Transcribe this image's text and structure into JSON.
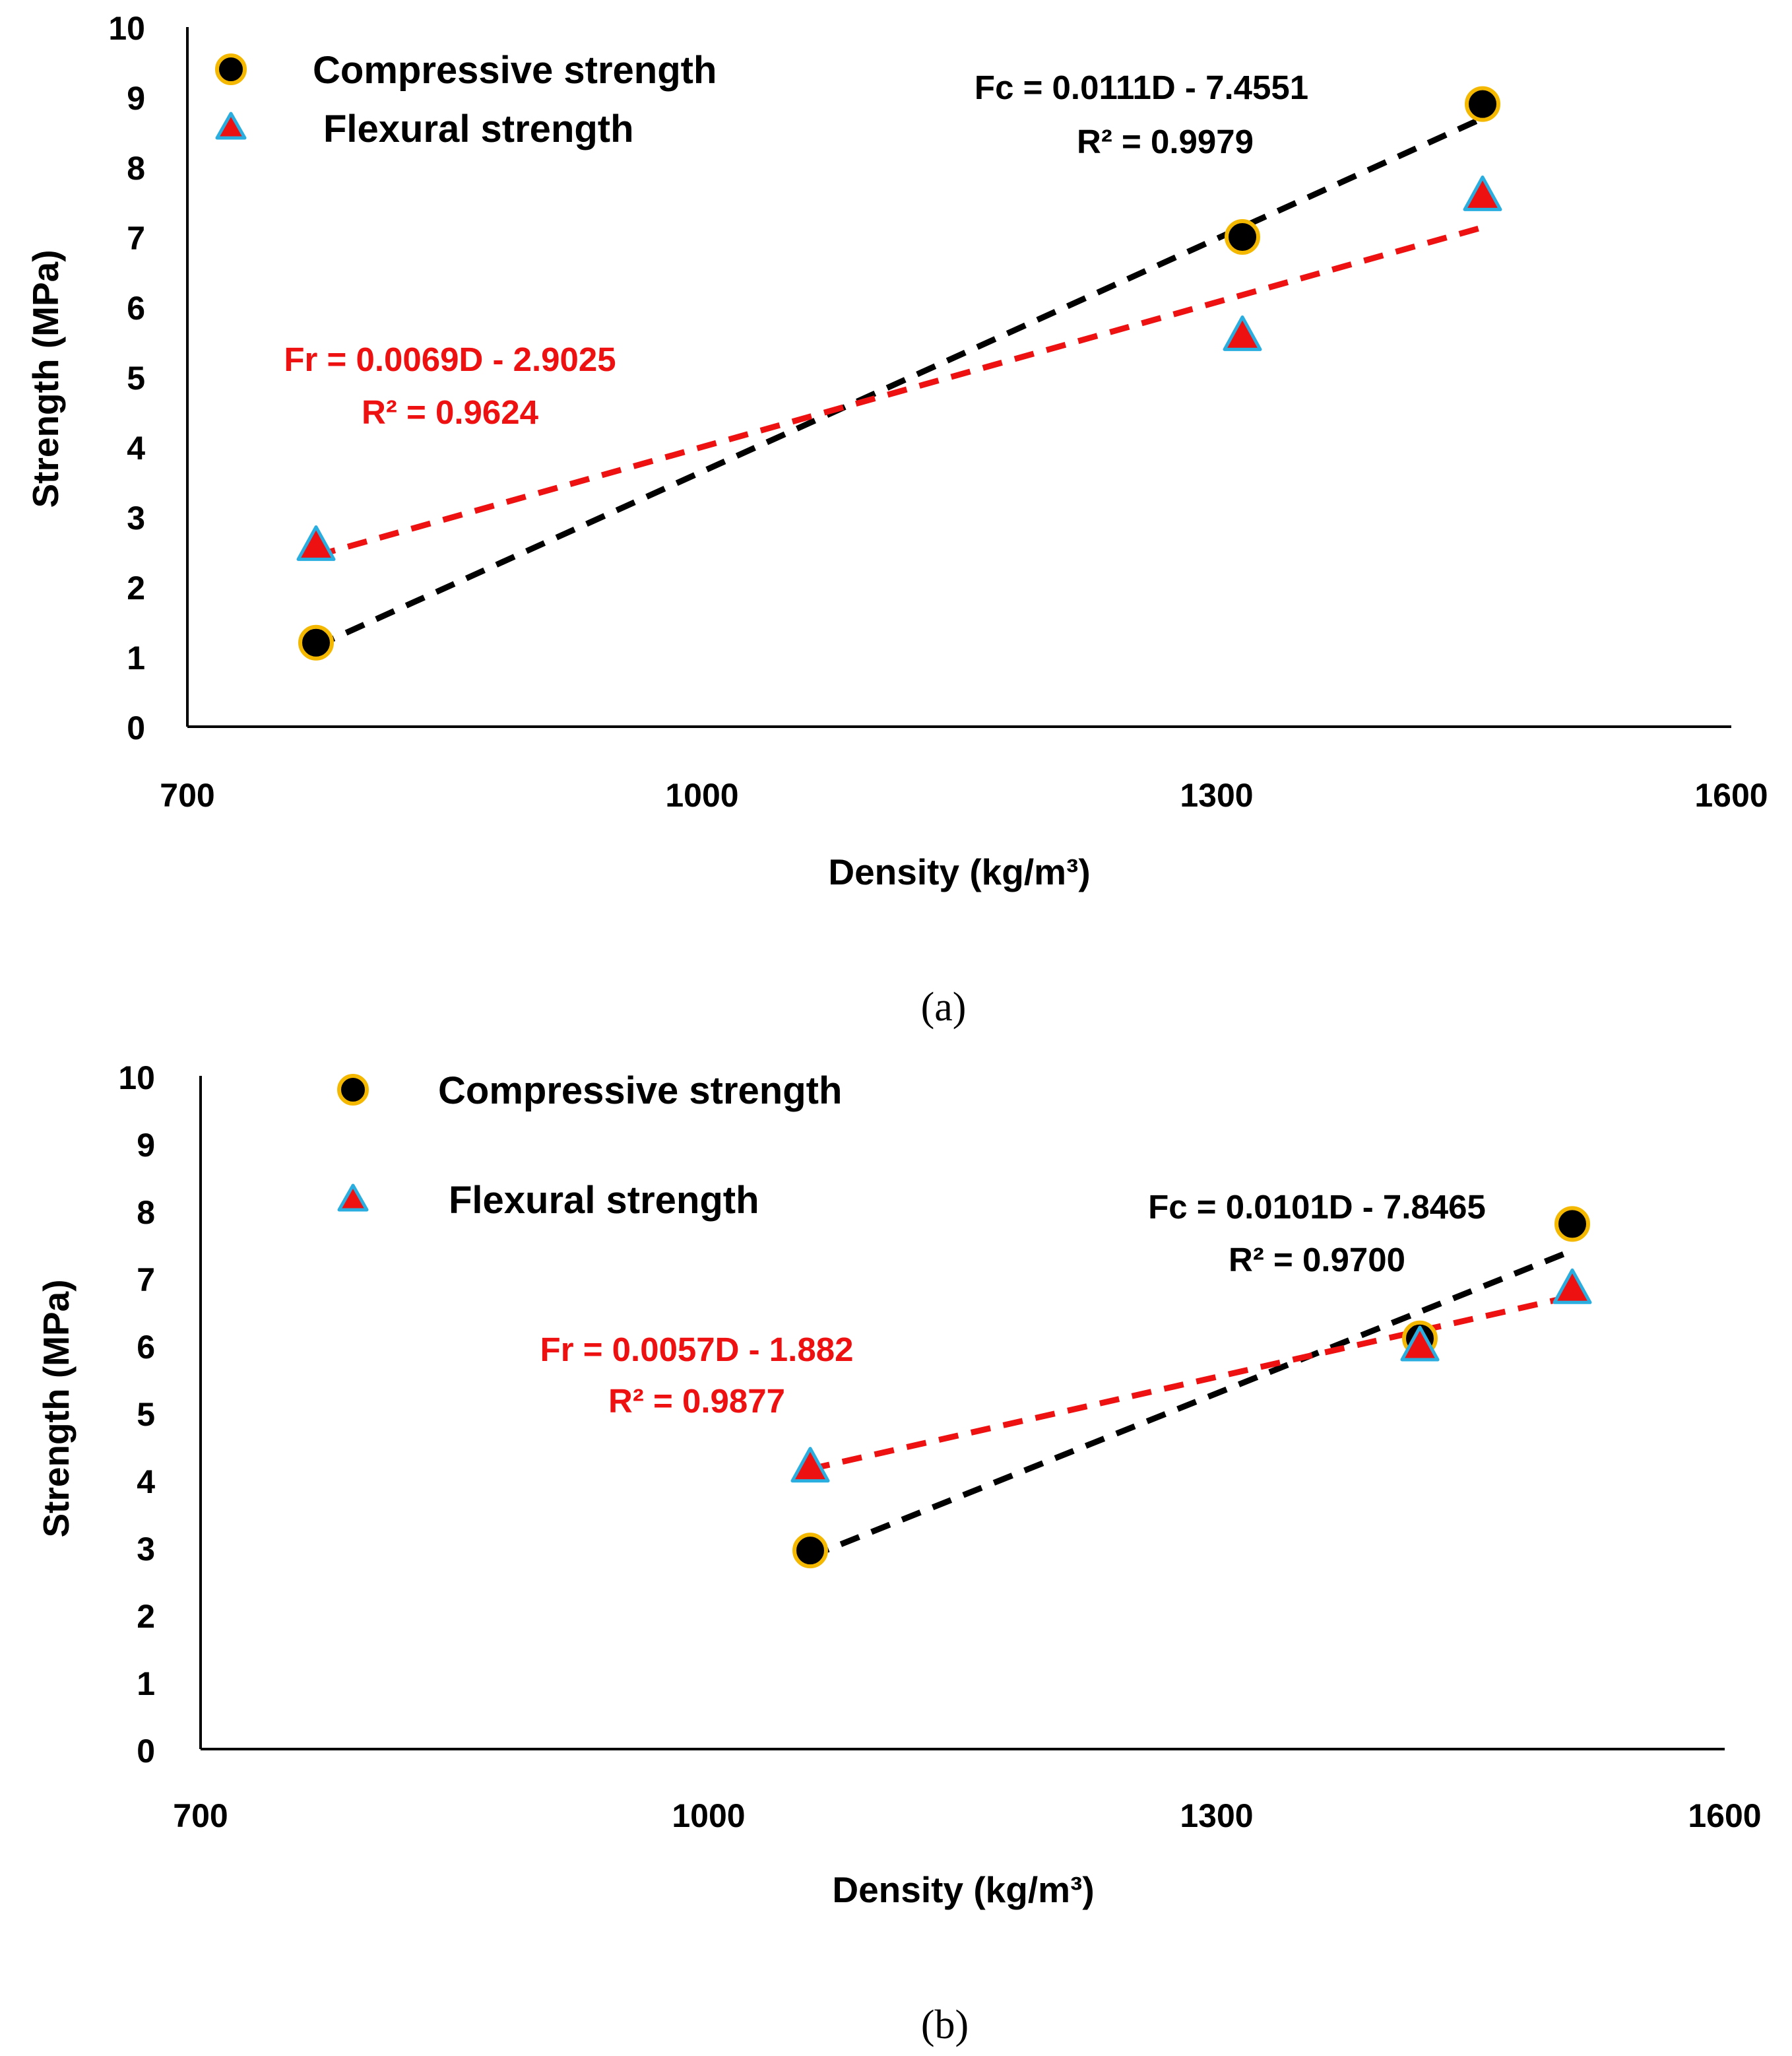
{
  "colors": {
    "compressive_fill": "#000000",
    "compressive_edge": "#F5B800",
    "flexural_fill": "#EE1111",
    "flexural_edge": "#2AAEE0",
    "trend_compressive": "#000000",
    "trend_flexural": "#EE1111",
    "axis": "#000000"
  },
  "chart_data": [
    {
      "id": "a",
      "type": "scatter",
      "caption": "(a)",
      "xlabel": "Density (kg/m³)",
      "ylabel": "Strength (MPa)",
      "xlim": [
        700,
        1600
      ],
      "ylim": [
        0,
        10
      ],
      "xticks": [
        "700",
        "1000",
        "1300",
        "1600"
      ],
      "yticks": [
        "0",
        "1",
        "2",
        "3",
        "4",
        "5",
        "6",
        "7",
        "8",
        "9",
        "10"
      ],
      "legend": [
        "Compressive strength",
        "Flexural strength"
      ],
      "legend_position": "top-left",
      "series": [
        {
          "name": "Compressive strength",
          "marker": "circle",
          "x": [
            775,
            1315,
            1455
          ],
          "y": [
            1.2,
            7.0,
            8.9
          ],
          "trendline": {
            "slope": 0.0111,
            "intercept": -7.4551,
            "equation": "Fc = 0.0111D - 7.4551",
            "r2": "R² = 0.9979"
          }
        },
        {
          "name": "Flexural strength",
          "marker": "triangle",
          "x": [
            775,
            1315,
            1455
          ],
          "y": [
            2.6,
            5.6,
            7.6
          ],
          "trendline": {
            "slope": 0.0069,
            "intercept": -2.9025,
            "equation": "Fr = 0.0069D - 2.9025",
            "r2": "R² = 0.9624"
          }
        }
      ]
    },
    {
      "id": "b",
      "type": "scatter",
      "caption": "(b)",
      "xlabel": "Density (kg/m³)",
      "ylabel": "Strength (MPa)",
      "xlim": [
        700,
        1600
      ],
      "ylim": [
        0,
        10
      ],
      "xticks": [
        "700",
        "1000",
        "1300",
        "1600"
      ],
      "yticks": [
        "0",
        "1",
        "2",
        "3",
        "4",
        "5",
        "6",
        "7",
        "8",
        "9",
        "10"
      ],
      "legend": [
        "Compressive strength",
        "Flexural strength"
      ],
      "legend_position": "top-left",
      "series": [
        {
          "name": "Compressive strength",
          "marker": "circle",
          "x": [
            1060,
            1420,
            1510
          ],
          "y": [
            2.95,
            6.1,
            7.8
          ],
          "trendline": {
            "slope": 0.0101,
            "intercept": -7.8465,
            "equation": "Fc = 0.0101D - 7.8465",
            "r2": "R² = 0.9700"
          }
        },
        {
          "name": "Flexural strength",
          "marker": "triangle",
          "x": [
            1060,
            1420,
            1510
          ],
          "y": [
            4.2,
            6.0,
            6.85
          ],
          "trendline": {
            "slope": 0.0057,
            "intercept": -1.882,
            "equation": "Fr = 0.0057D - 1.882",
            "r2": "R² = 0.9877"
          }
        }
      ]
    }
  ]
}
